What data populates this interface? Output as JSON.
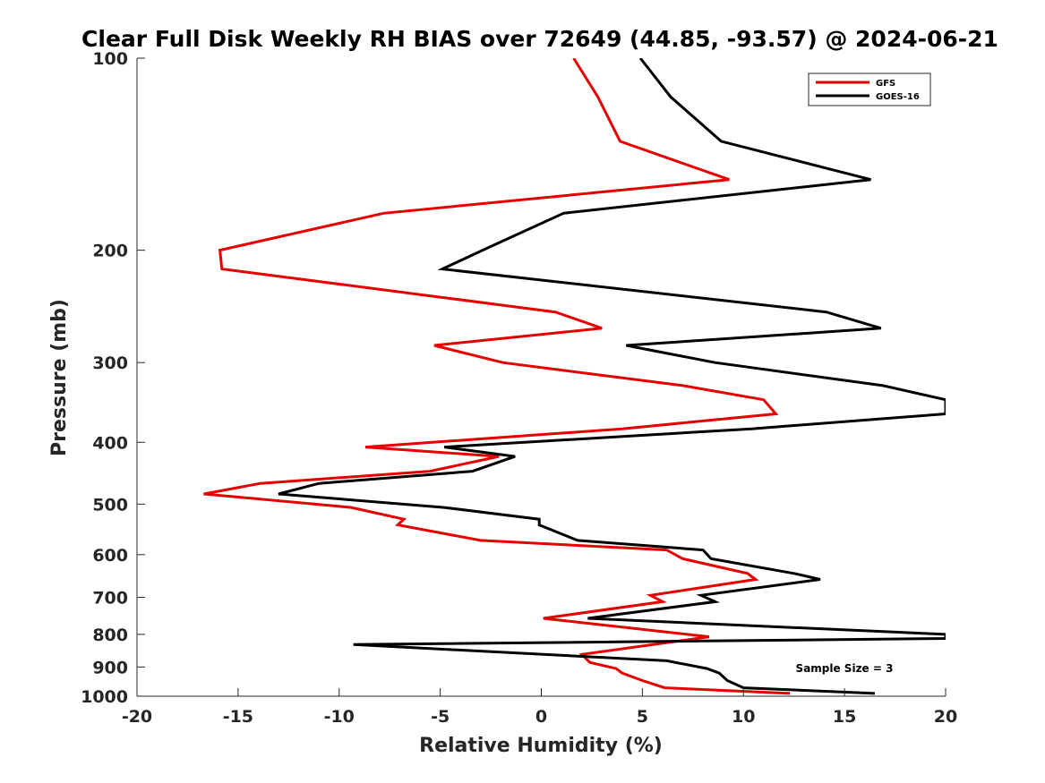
{
  "chart_data": {
    "type": "line",
    "title": "Clear Full Disk Weekly RH BIAS over 72649 (44.85, -93.57) @ 2024-06-21",
    "xlabel": "Relative Humidity (%)",
    "ylabel": "Pressure (mb)",
    "xlim": [
      -20,
      20
    ],
    "ylim": [
      1000,
      100
    ],
    "yscale": "log",
    "x_ticks": [
      "-20",
      "-15",
      "-10",
      "-5",
      "0",
      "5",
      "10",
      "15",
      "20"
    ],
    "x_tick_values": [
      -20,
      -15,
      -10,
      -5,
      0,
      5,
      10,
      15,
      20
    ],
    "y_ticks": [
      "100",
      "200",
      "300",
      "400",
      "500",
      "600",
      "700",
      "800",
      "900",
      "1000"
    ],
    "y_tick_values": [
      100,
      200,
      300,
      400,
      500,
      600,
      700,
      800,
      900,
      1000
    ],
    "grid": false,
    "legend_position": "top-right",
    "annotation": "Sample Size = 3",
    "series": [
      {
        "name": "GFS",
        "color": "#e60000",
        "points": [
          [
            1.6,
            100
          ],
          [
            2.8,
            115
          ],
          [
            3.9,
            135
          ],
          [
            9.3,
            155
          ],
          [
            -7.8,
            175
          ],
          [
            -15.9,
            200
          ],
          [
            -15.8,
            214
          ],
          [
            0.7,
            250
          ],
          [
            3.0,
            265
          ],
          [
            -5.3,
            282
          ],
          [
            -1.9,
            300
          ],
          [
            7.0,
            326
          ],
          [
            11.0,
            343
          ],
          [
            11.6,
            361
          ],
          [
            4.0,
            381
          ],
          [
            -8.7,
            407
          ],
          [
            -2.1,
            421
          ],
          [
            -5.5,
            444
          ],
          [
            -13.9,
            464
          ],
          [
            -16.7,
            482
          ],
          [
            -9.4,
            506
          ],
          [
            -6.8,
            528
          ],
          [
            -7.1,
            539
          ],
          [
            -3.0,
            570
          ],
          [
            6.2,
            590
          ],
          [
            7.0,
            609
          ],
          [
            10.2,
            642
          ],
          [
            10.6,
            656
          ],
          [
            5.4,
            695
          ],
          [
            6.0,
            711
          ],
          [
            0.1,
            755
          ],
          [
            8.3,
            807
          ],
          [
            2.0,
            860
          ],
          [
            2.4,
            885
          ],
          [
            3.7,
            905
          ],
          [
            4.0,
            920
          ],
          [
            5.0,
            945
          ],
          [
            6.1,
            970
          ],
          [
            12.3,
            990
          ]
        ]
      },
      {
        "name": "GOES-16",
        "color": "#000000",
        "points": [
          [
            4.9,
            100
          ],
          [
            6.4,
            115
          ],
          [
            8.9,
            135
          ],
          [
            16.3,
            155
          ],
          [
            1.1,
            175
          ],
          [
            -2.9,
            200
          ],
          [
            -4.9,
            214
          ],
          [
            14.1,
            250
          ],
          [
            16.8,
            265
          ],
          [
            4.2,
            282
          ],
          [
            8.6,
            300
          ],
          [
            16.9,
            326
          ],
          [
            20.0,
            343
          ],
          [
            20.0,
            361
          ],
          [
            10.4,
            381
          ],
          [
            -4.8,
            407
          ],
          [
            -1.3,
            421
          ],
          [
            -3.4,
            444
          ],
          [
            -11.0,
            464
          ],
          [
            -13.0,
            482
          ],
          [
            -4.8,
            506
          ],
          [
            -0.1,
            528
          ],
          [
            -0.1,
            539
          ],
          [
            1.8,
            570
          ],
          [
            8.0,
            590
          ],
          [
            8.4,
            609
          ],
          [
            12.5,
            642
          ],
          [
            13.8,
            656
          ],
          [
            7.9,
            695
          ],
          [
            8.6,
            711
          ],
          [
            2.3,
            755
          ],
          [
            20.0,
            800
          ],
          [
            20.0,
            812
          ],
          [
            -9.3,
            830
          ],
          [
            6.2,
            880
          ],
          [
            8.2,
            905
          ],
          [
            8.8,
            920
          ],
          [
            9.2,
            945
          ],
          [
            10.0,
            970
          ],
          [
            16.5,
            990
          ]
        ]
      }
    ]
  }
}
